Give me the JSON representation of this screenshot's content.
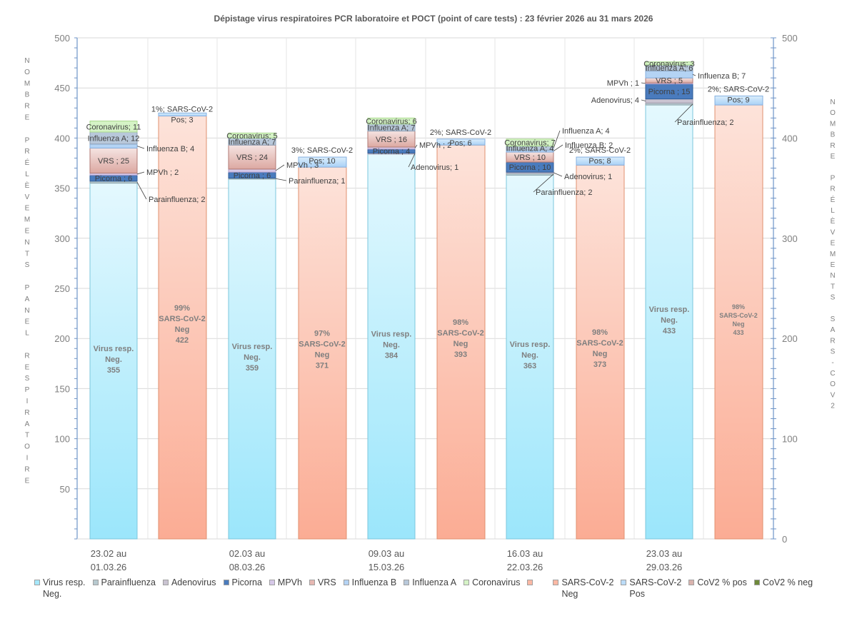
{
  "chart_data": {
    "type": "bar",
    "stacked": true,
    "title": "Dépistage  virus  respiratoires  PCR laboratoire  et POCT  (point  of  care tests) : 23 février 2026 au  31 mars  2026",
    "ylabel_left": [
      "N",
      "O",
      "M",
      "B",
      "R",
      "E",
      "",
      "P",
      "R",
      "É",
      "L",
      "È",
      "V",
      "E",
      "M",
      "E",
      "N",
      "T",
      "S",
      "",
      "P",
      "A",
      "N",
      "E",
      "L",
      "",
      "R",
      "E",
      "S",
      "P",
      "I",
      "R",
      "A",
      "T",
      "O",
      "I",
      "R",
      "E"
    ],
    "ylabel_right": [
      "N",
      "O",
      "M",
      "B",
      "R",
      "E",
      "",
      "P",
      "R",
      "É",
      "L",
      "È",
      "V",
      "E",
      "M",
      "E",
      "N",
      "T",
      "S",
      "",
      "S",
      "A",
      "R",
      "S",
      "-",
      "C",
      "O",
      "V",
      "2"
    ],
    "ylim_left": [
      0,
      500
    ],
    "ylim_right": [
      0,
      500
    ],
    "yticks_left": [
      "500",
      "450",
      "400",
      "350",
      "300",
      "250",
      "200",
      "150",
      "100",
      "50"
    ],
    "yticks_right": [
      "500",
      "400",
      "300",
      "200",
      "100",
      "0"
    ],
    "grid": true,
    "categories": [
      [
        "23.02 au",
        "01.03.26"
      ],
      [
        "02.03 au",
        "08.03.26"
      ],
      [
        "09.03 au",
        "15.03.26"
      ],
      [
        "16.03 au",
        "22.03.26"
      ],
      [
        "23.03 au",
        "29.03.26"
      ]
    ],
    "virus_series": [
      {
        "name": "Virus resp. Neg.",
        "key": "neg",
        "color": "#a6e8fb",
        "values": [
          355,
          359,
          384,
          363,
          433
        ]
      },
      {
        "name": "Parainfluenza",
        "key": "para",
        "color": "#b7c9cf",
        "values": [
          2,
          1,
          0,
          2,
          2
        ]
      },
      {
        "name": "Adenovirus",
        "key": "adeno",
        "color": "#c9c3d1",
        "values": [
          0,
          0,
          1,
          1,
          4
        ]
      },
      {
        "name": "Picorna",
        "key": "picorna",
        "color": "#4a7bbd",
        "values": [
          6,
          6,
          4,
          10,
          15
        ]
      },
      {
        "name": "MPVh",
        "key": "mpvh",
        "color": "#d6c8e8",
        "values": [
          2,
          3,
          2,
          0,
          1
        ]
      },
      {
        "name": "VRS",
        "key": "vrs",
        "color": "#e6b8b2",
        "values": [
          25,
          24,
          16,
          10,
          5
        ]
      },
      {
        "name": "Influenza B",
        "key": "flub",
        "color": "#b4d3f4",
        "values": [
          4,
          0,
          0,
          2,
          7
        ]
      },
      {
        "name": "Influenza A",
        "key": "flua",
        "color": "#b8c8da",
        "values": [
          12,
          7,
          7,
          4,
          6
        ]
      },
      {
        "name": "Coronavirus",
        "key": "corona",
        "color": "#d5f3c6",
        "values": [
          11,
          5,
          6,
          7,
          3
        ]
      }
    ],
    "sars_series": [
      {
        "name": "SARS-CoV-2 Neg",
        "key": "sneg",
        "color": "#fbb8a4",
        "values": [
          422,
          371,
          393,
          373,
          433
        ],
        "pct": [
          "99%",
          "97%",
          "98%",
          "98%",
          "98%"
        ]
      },
      {
        "name": "SARS-CoV-2 Pos",
        "key": "spos",
        "color": "#bcdcf8",
        "values": [
          3,
          10,
          6,
          8,
          9
        ],
        "pct": [
          "1%",
          "3%",
          "2%",
          "2%",
          "2%"
        ]
      }
    ],
    "segment_labels": [
      [
        "Parainfluenza; 2",
        "",
        "Picorna ; 6",
        "MPVh ; 2",
        "VRS  ; 25",
        "Influenza B; 4",
        "Influenza A; 12",
        "Coronavirus; 11"
      ],
      [
        "Parainfluenza; 1",
        "",
        "Picorna ; 6",
        "MPVh ; 3",
        "VRS  ; 24",
        "",
        "Influenza A; 7",
        "Coronavirus; 5"
      ],
      [
        "",
        "Adenovirus; 1",
        "Picorna ; 4",
        "MPVh ; 2",
        "VRS  ; 16",
        "",
        "Influenza A; 7",
        "Coronavirus; 6"
      ],
      [
        "Parainfluenza; 2",
        "Adenovirus; 1",
        "Picorna ; 10",
        "",
        "VRS  ; 10",
        "Influenza B; 2",
        "Influenza A; 4",
        "Coronavirus; 7"
      ],
      [
        "Parainfluenza; 2",
        "Adenovirus; 4",
        "Picorna ; 15",
        "MPVh ; 1",
        "VRS  ; 5",
        "Influenza B; 7",
        "Influenza A; 6",
        "Coronavirus; 3"
      ]
    ],
    "neg_labels": [
      "Virus resp.",
      "Neg."
    ],
    "sars_neg_labels": [
      "SARS-CoV-2",
      "Neg"
    ],
    "sars_pos_label_prefix": "SARS-CoV-2",
    "sars_pos_label_suffix": "Pos",
    "legend": [
      {
        "label": "Virus resp.\nNeg.",
        "color": "#a6e8fb"
      },
      {
        "label": "Parainfluenza",
        "color": "#b7c9cf"
      },
      {
        "label": "Adenovirus",
        "color": "#c9c3d1"
      },
      {
        "label": "Picorna",
        "color": "#4a7bbd"
      },
      {
        "label": "MPVh",
        "color": "#d6c8e8"
      },
      {
        "label": "VRS",
        "color": "#e6b8b2"
      },
      {
        "label": "Influenza B",
        "color": "#b4d3f4"
      },
      {
        "label": "Influenza A",
        "color": "#b8c8da"
      },
      {
        "label": "Coronavirus",
        "color": "#d5f3c6"
      },
      {
        "label": "",
        "color": "#fbb8a4"
      },
      {
        "label": "SARS-CoV-2\nNeg",
        "color": "#fbb8a4"
      },
      {
        "label": "SARS-CoV-2\nPos",
        "color": "#bcdcf8"
      },
      {
        "label": "CoV2 % pos",
        "color": "#d9b3ad"
      },
      {
        "label": "CoV2 % neg",
        "color": "#6e8a3a"
      }
    ],
    "legend_placement": "bottom"
  }
}
